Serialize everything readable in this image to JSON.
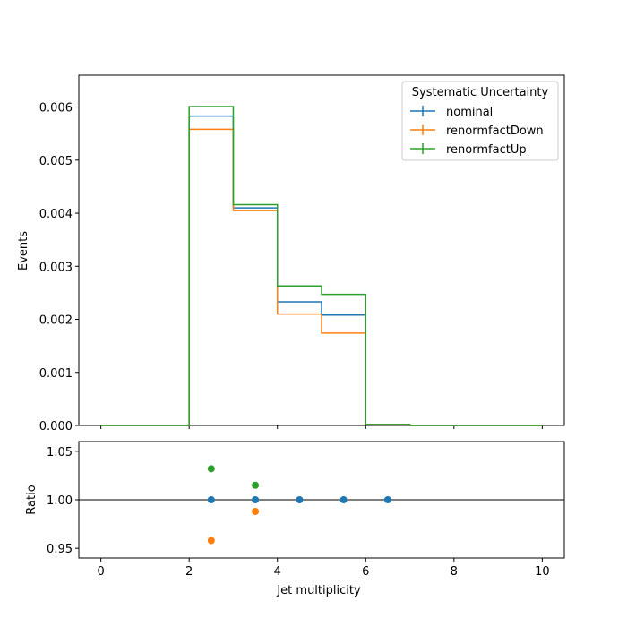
{
  "chart_data": [
    {
      "type": "line",
      "step": true,
      "ylabel": "Events",
      "xlim": [
        -0.5,
        10.5
      ],
      "ylim": [
        0,
        0.0066
      ],
      "x_bin_edges": [
        0,
        1,
        2,
        3,
        4,
        5,
        6,
        7,
        8,
        9,
        10
      ],
      "yticks": [
        "0.000",
        "0.001",
        "0.002",
        "0.003",
        "0.004",
        "0.005",
        "0.006"
      ],
      "ytick_values": [
        0,
        0.001,
        0.002,
        0.003,
        0.004,
        0.005,
        0.006
      ],
      "legend": {
        "title": "Systematic Uncertainty",
        "position": "upper right"
      },
      "grid": false,
      "series": [
        {
          "name": "nominal",
          "color": "#1f77b4",
          "values": [
            0,
            0,
            0.00583,
            0.0041,
            0.00233,
            0.00208,
            2e-05,
            0,
            0,
            0
          ]
        },
        {
          "name": "renormfactDown",
          "color": "#ff7f0e",
          "values": [
            0,
            0,
            0.00558,
            0.00405,
            0.0021,
            0.00174,
            2e-05,
            0,
            0,
            0
          ]
        },
        {
          "name": "renormfactUp",
          "color": "#2ca02c",
          "values": [
            0,
            0,
            0.00601,
            0.00416,
            0.00263,
            0.00247,
            2e-05,
            0,
            0,
            0
          ]
        }
      ]
    },
    {
      "type": "scatter",
      "xlabel": "Jet multiplicity",
      "ylabel": "Ratio",
      "xlim": [
        -0.5,
        10.5
      ],
      "ylim": [
        0.94,
        1.06
      ],
      "xticks": [
        "0",
        "2",
        "4",
        "6",
        "8",
        "10"
      ],
      "xtick_values": [
        0,
        2,
        4,
        6,
        8,
        10
      ],
      "yticks": [
        "0.95",
        "1.00",
        "1.05"
      ],
      "ytick_values": [
        0.95,
        1.0,
        1.05
      ],
      "reference_line": 1.0,
      "series": [
        {
          "name": "nominal",
          "color": "#1f77b4",
          "x": [
            2.5,
            3.5,
            4.5,
            5.5,
            6.5
          ],
          "y": [
            1.0,
            1.0,
            1.0,
            1.0,
            1.0
          ]
        },
        {
          "name": "renormfactDown",
          "color": "#ff7f0e",
          "x": [
            2.5,
            3.5
          ],
          "y": [
            0.958,
            0.988
          ]
        },
        {
          "name": "renormfactUp",
          "color": "#2ca02c",
          "x": [
            2.5,
            3.5
          ],
          "y": [
            1.032,
            1.015
          ]
        }
      ]
    }
  ]
}
